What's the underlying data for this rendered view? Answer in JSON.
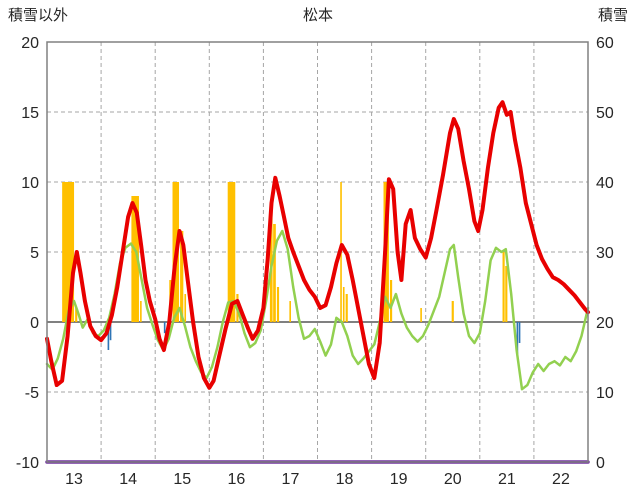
{
  "header": {
    "left_axis_title": "積雪以外",
    "chart_title": "松本",
    "right_axis_title": "積雪"
  },
  "chart_data": {
    "type": "line",
    "title": "松本",
    "left_axis": {
      "label": "積雪以外",
      "min": -10,
      "max": 20,
      "tick_values": [
        20,
        15,
        10,
        5,
        0,
        -5,
        -10
      ]
    },
    "right_axis": {
      "label": "積雪",
      "min": 0,
      "max": 60,
      "tick_values": [
        60,
        50,
        40,
        30,
        20,
        10,
        0
      ]
    },
    "x_axis": {
      "labels": [
        "13",
        "14",
        "15",
        "16",
        "17",
        "18",
        "19",
        "20",
        "21",
        "22"
      ],
      "segments": 10,
      "grid": "dashed"
    },
    "colors": {
      "red_line": "#e80000",
      "green_line": "#92d050",
      "orange_bars": "#ffc000",
      "blue_bars": "#2e75b6",
      "purple_line": "#7030a0",
      "grid": "#a6a6a6",
      "zero_line": "#808080",
      "border": "#808080",
      "text": "#262626"
    },
    "series": [
      {
        "name": "orange-bars",
        "type": "bar",
        "axis": "left",
        "color": "#ffc000",
        "bars": [
          [
            0.28,
            0.22,
            10
          ],
          [
            0.52,
            0.04,
            1
          ],
          [
            1.56,
            0.14,
            9
          ],
          [
            1.72,
            0.03,
            1.5
          ],
          [
            2.26,
            0.04,
            3
          ],
          [
            2.32,
            0.12,
            10
          ],
          [
            2.46,
            0.06,
            6.5
          ],
          [
            2.54,
            0.03,
            2
          ],
          [
            3.34,
            0.14,
            10
          ],
          [
            3.5,
            0.04,
            2
          ],
          [
            4.12,
            0.05,
            8.5
          ],
          [
            4.18,
            0.05,
            7
          ],
          [
            4.25,
            0.04,
            2.5
          ],
          [
            4.48,
            0.03,
            1.5
          ],
          [
            5.42,
            0.03,
            10
          ],
          [
            5.47,
            0.03,
            2.5
          ],
          [
            5.52,
            0.04,
            2
          ],
          [
            6.22,
            0.1,
            10
          ],
          [
            6.34,
            0.04,
            3
          ],
          [
            6.9,
            0.03,
            1
          ],
          [
            7.48,
            0.04,
            1.5
          ],
          [
            8.42,
            0.04,
            5
          ],
          [
            8.47,
            0.04,
            4
          ]
        ]
      },
      {
        "name": "blue-bars",
        "type": "bar",
        "axis": "left",
        "color": "#2e75b6",
        "bars": [
          [
            1.12,
            0.03,
            -2
          ],
          [
            1.16,
            0.03,
            -1.3
          ],
          [
            2.16,
            0.03,
            -0.8
          ],
          [
            8.68,
            0.03,
            -2.3
          ],
          [
            8.72,
            0.03,
            -1.5
          ]
        ]
      },
      {
        "name": "green-line",
        "type": "line",
        "axis": "left",
        "color": "#92d050",
        "width": 2.5,
        "points": [
          [
            0.0,
            -3.0
          ],
          [
            0.1,
            -3.4
          ],
          [
            0.2,
            -2.6
          ],
          [
            0.3,
            -1.2
          ],
          [
            0.4,
            0.8
          ],
          [
            0.5,
            1.5
          ],
          [
            0.58,
            0.6
          ],
          [
            0.66,
            -0.4
          ],
          [
            0.75,
            0.2
          ],
          [
            0.85,
            -0.8
          ],
          [
            0.95,
            -1.0
          ],
          [
            1.05,
            -0.6
          ],
          [
            1.15,
            0.3
          ],
          [
            1.25,
            2.0
          ],
          [
            1.35,
            4.2
          ],
          [
            1.45,
            5.3
          ],
          [
            1.55,
            5.6
          ],
          [
            1.65,
            5.0
          ],
          [
            1.75,
            3.0
          ],
          [
            1.85,
            1.0
          ],
          [
            1.95,
            -0.2
          ],
          [
            2.05,
            -1.3
          ],
          [
            2.15,
            -2.0
          ],
          [
            2.25,
            -1.2
          ],
          [
            2.35,
            0.3
          ],
          [
            2.45,
            1.0
          ],
          [
            2.55,
            -0.3
          ],
          [
            2.65,
            -1.8
          ],
          [
            2.75,
            -2.8
          ],
          [
            2.85,
            -3.6
          ],
          [
            2.95,
            -4.0
          ],
          [
            3.05,
            -3.2
          ],
          [
            3.15,
            -1.8
          ],
          [
            3.25,
            0.0
          ],
          [
            3.35,
            1.4
          ],
          [
            3.45,
            1.5
          ],
          [
            3.55,
            0.6
          ],
          [
            3.65,
            -0.8
          ],
          [
            3.75,
            -1.8
          ],
          [
            3.85,
            -1.5
          ],
          [
            3.95,
            -0.6
          ],
          [
            4.05,
            1.5
          ],
          [
            4.15,
            4.0
          ],
          [
            4.25,
            5.8
          ],
          [
            4.35,
            6.5
          ],
          [
            4.45,
            5.2
          ],
          [
            4.55,
            2.5
          ],
          [
            4.65,
            0.3
          ],
          [
            4.75,
            -1.2
          ],
          [
            4.85,
            -1.0
          ],
          [
            4.95,
            -0.5
          ],
          [
            5.05,
            -1.4
          ],
          [
            5.15,
            -2.4
          ],
          [
            5.25,
            -1.6
          ],
          [
            5.35,
            0.3
          ],
          [
            5.45,
            0.0
          ],
          [
            5.55,
            -1.0
          ],
          [
            5.65,
            -2.4
          ],
          [
            5.75,
            -3.0
          ],
          [
            5.85,
            -2.6
          ],
          [
            5.95,
            -2.1
          ],
          [
            6.05,
            -1.6
          ],
          [
            6.15,
            0.0
          ],
          [
            6.25,
            1.8
          ],
          [
            6.35,
            1.0
          ],
          [
            6.45,
            2.0
          ],
          [
            6.55,
            0.6
          ],
          [
            6.65,
            -0.4
          ],
          [
            6.75,
            -1.0
          ],
          [
            6.85,
            -1.4
          ],
          [
            6.95,
            -1.0
          ],
          [
            7.05,
            -0.2
          ],
          [
            7.15,
            0.8
          ],
          [
            7.25,
            1.8
          ],
          [
            7.35,
            3.5
          ],
          [
            7.45,
            5.2
          ],
          [
            7.52,
            5.5
          ],
          [
            7.6,
            3.2
          ],
          [
            7.7,
            0.6
          ],
          [
            7.8,
            -1.0
          ],
          [
            7.9,
            -1.5
          ],
          [
            8.0,
            -0.8
          ],
          [
            8.1,
            1.5
          ],
          [
            8.2,
            4.4
          ],
          [
            8.3,
            5.3
          ],
          [
            8.4,
            5.0
          ],
          [
            8.48,
            5.2
          ],
          [
            8.58,
            2.0
          ],
          [
            8.68,
            -2.0
          ],
          [
            8.78,
            -4.8
          ],
          [
            8.88,
            -4.5
          ],
          [
            8.98,
            -3.6
          ],
          [
            9.08,
            -3.0
          ],
          [
            9.18,
            -3.5
          ],
          [
            9.28,
            -3.0
          ],
          [
            9.38,
            -2.8
          ],
          [
            9.48,
            -3.1
          ],
          [
            9.58,
            -2.5
          ],
          [
            9.68,
            -2.8
          ],
          [
            9.78,
            -2.1
          ],
          [
            9.88,
            -1.0
          ],
          [
            10.0,
            1.0
          ]
        ]
      },
      {
        "name": "red-line",
        "type": "line",
        "axis": "left",
        "color": "#e80000",
        "width": 4,
        "points": [
          [
            0.0,
            -1.2
          ],
          [
            0.08,
            -2.8
          ],
          [
            0.18,
            -4.5
          ],
          [
            0.28,
            -4.2
          ],
          [
            0.38,
            -1.0
          ],
          [
            0.48,
            3.5
          ],
          [
            0.55,
            5.0
          ],
          [
            0.62,
            3.5
          ],
          [
            0.7,
            1.5
          ],
          [
            0.8,
            -0.3
          ],
          [
            0.9,
            -1.0
          ],
          [
            1.0,
            -1.3
          ],
          [
            1.1,
            -0.8
          ],
          [
            1.2,
            0.5
          ],
          [
            1.3,
            2.5
          ],
          [
            1.4,
            5.0
          ],
          [
            1.5,
            7.5
          ],
          [
            1.58,
            8.5
          ],
          [
            1.66,
            7.8
          ],
          [
            1.74,
            5.5
          ],
          [
            1.82,
            3.0
          ],
          [
            1.9,
            1.5
          ],
          [
            2.0,
            0.2
          ],
          [
            2.08,
            -1.2
          ],
          [
            2.16,
            -2.0
          ],
          [
            2.26,
            0.0
          ],
          [
            2.36,
            4.0
          ],
          [
            2.45,
            6.5
          ],
          [
            2.52,
            5.5
          ],
          [
            2.6,
            3.0
          ],
          [
            2.7,
            0.0
          ],
          [
            2.8,
            -2.5
          ],
          [
            2.9,
            -4.0
          ],
          [
            3.0,
            -4.7
          ],
          [
            3.08,
            -4.2
          ],
          [
            3.18,
            -2.5
          ],
          [
            3.3,
            -0.5
          ],
          [
            3.42,
            1.3
          ],
          [
            3.52,
            1.5
          ],
          [
            3.62,
            0.5
          ],
          [
            3.72,
            -0.5
          ],
          [
            3.8,
            -1.2
          ],
          [
            3.9,
            -0.6
          ],
          [
            4.0,
            1.0
          ],
          [
            4.08,
            4.5
          ],
          [
            4.15,
            8.5
          ],
          [
            4.22,
            10.3
          ],
          [
            4.3,
            9.0
          ],
          [
            4.38,
            7.5
          ],
          [
            4.46,
            6.0
          ],
          [
            4.55,
            5.0
          ],
          [
            4.65,
            4.0
          ],
          [
            4.75,
            3.0
          ],
          [
            4.85,
            2.3
          ],
          [
            4.95,
            1.8
          ],
          [
            5.05,
            1.0
          ],
          [
            5.15,
            1.2
          ],
          [
            5.25,
            2.5
          ],
          [
            5.35,
            4.2
          ],
          [
            5.45,
            5.5
          ],
          [
            5.55,
            4.8
          ],
          [
            5.65,
            3.0
          ],
          [
            5.75,
            1.0
          ],
          [
            5.85,
            -1.0
          ],
          [
            5.95,
            -3.0
          ],
          [
            6.05,
            -4.0
          ],
          [
            6.15,
            -1.5
          ],
          [
            6.25,
            5.0
          ],
          [
            6.32,
            10.2
          ],
          [
            6.4,
            9.5
          ],
          [
            6.48,
            5.0
          ],
          [
            6.55,
            3.0
          ],
          [
            6.63,
            7.0
          ],
          [
            6.72,
            8.0
          ],
          [
            6.8,
            6.0
          ],
          [
            6.9,
            5.2
          ],
          [
            7.0,
            4.6
          ],
          [
            7.1,
            6.0
          ],
          [
            7.2,
            8.0
          ],
          [
            7.32,
            10.5
          ],
          [
            7.45,
            13.5
          ],
          [
            7.52,
            14.5
          ],
          [
            7.6,
            13.8
          ],
          [
            7.7,
            11.5
          ],
          [
            7.8,
            9.5
          ],
          [
            7.9,
            7.2
          ],
          [
            7.97,
            6.5
          ],
          [
            8.05,
            8.0
          ],
          [
            8.15,
            11.0
          ],
          [
            8.25,
            13.5
          ],
          [
            8.35,
            15.3
          ],
          [
            8.42,
            15.7
          ],
          [
            8.5,
            14.8
          ],
          [
            8.57,
            15.0
          ],
          [
            8.65,
            13.0
          ],
          [
            8.75,
            11.0
          ],
          [
            8.85,
            8.5
          ],
          [
            8.95,
            7.0
          ],
          [
            9.05,
            5.5
          ],
          [
            9.15,
            4.5
          ],
          [
            9.25,
            3.8
          ],
          [
            9.35,
            3.2
          ],
          [
            9.45,
            3.0
          ],
          [
            9.55,
            2.7
          ],
          [
            9.65,
            2.3
          ],
          [
            9.75,
            1.9
          ],
          [
            9.85,
            1.4
          ],
          [
            9.95,
            0.9
          ],
          [
            10.0,
            0.7
          ]
        ]
      },
      {
        "name": "purple-line",
        "type": "line",
        "axis": "left",
        "color": "#7030a0",
        "width": 3.5,
        "points": [
          [
            0.0,
            -10
          ],
          [
            10.0,
            -10
          ]
        ]
      }
    ]
  }
}
